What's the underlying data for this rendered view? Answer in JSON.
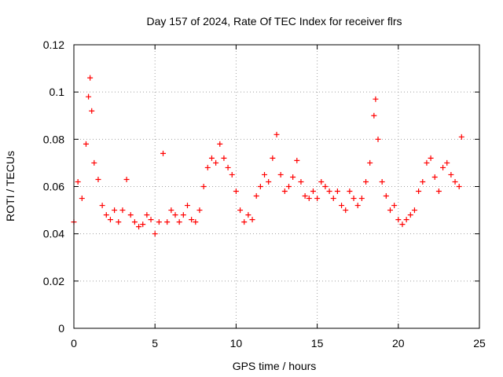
{
  "chart_data": {
    "type": "scatter",
    "title": "Day 157 of 2024, Rate Of TEC Index for receiver flrs",
    "xlabel": "GPS time / hours",
    "ylabel": "ROTI / TECUs",
    "xlim": [
      0,
      25
    ],
    "ylim": [
      0,
      0.12
    ],
    "x_ticks": [
      0,
      5,
      10,
      15,
      20,
      25
    ],
    "x_tick_labels": [
      "0",
      "5",
      "10",
      "15",
      "20",
      "25"
    ],
    "y_ticks": [
      0,
      0.02,
      0.04,
      0.06,
      0.08,
      0.1,
      0.12
    ],
    "y_tick_labels": [
      "0",
      "0.02",
      "0.04",
      "0.06",
      "0.08",
      "0.1",
      "0.12"
    ],
    "grid": true,
    "grid_style": "dotted",
    "marker": "+",
    "color": "#ff0000",
    "series": [
      {
        "x": [
          0.0,
          0.25,
          0.5,
          0.75,
          0.9,
          1.0,
          1.1,
          1.25,
          1.5,
          1.75,
          2.0,
          2.25,
          2.5,
          2.75,
          3.0,
          3.25,
          3.5,
          3.75,
          4.0,
          4.25,
          4.5,
          4.75,
          5.0,
          5.25,
          5.5,
          5.75,
          6.0,
          6.25,
          6.5,
          6.75,
          7.0,
          7.25,
          7.5,
          7.75,
          8.0,
          8.25,
          8.5,
          8.75,
          9.0,
          9.25,
          9.5,
          9.75,
          10.0,
          10.25,
          10.5,
          10.75,
          11.0,
          11.25,
          11.5,
          11.75,
          12.0,
          12.25,
          12.5,
          12.75,
          13.0,
          13.25,
          13.5,
          13.75,
          14.0,
          14.25,
          14.5,
          14.75,
          15.0,
          15.25,
          15.5,
          15.75,
          16.0,
          16.25,
          16.5,
          16.75,
          17.0,
          17.25,
          17.5,
          17.75,
          18.0,
          18.25,
          18.5,
          18.6,
          18.75,
          19.0,
          19.25,
          19.5,
          19.75,
          20.0,
          20.25,
          20.5,
          20.75,
          21.0,
          21.25,
          21.5,
          21.75,
          22.0,
          22.25,
          22.5,
          22.75,
          23.0,
          23.25,
          23.5,
          23.75,
          23.9
        ],
        "y": [
          0.045,
          0.062,
          0.055,
          0.078,
          0.098,
          0.106,
          0.092,
          0.07,
          0.063,
          0.052,
          0.048,
          0.046,
          0.05,
          0.045,
          0.05,
          0.063,
          0.048,
          0.045,
          0.043,
          0.044,
          0.048,
          0.046,
          0.04,
          0.045,
          0.074,
          0.045,
          0.05,
          0.048,
          0.045,
          0.048,
          0.052,
          0.046,
          0.045,
          0.05,
          0.06,
          0.068,
          0.072,
          0.07,
          0.078,
          0.072,
          0.068,
          0.065,
          0.058,
          0.05,
          0.045,
          0.048,
          0.046,
          0.056,
          0.06,
          0.065,
          0.062,
          0.072,
          0.082,
          0.065,
          0.058,
          0.06,
          0.064,
          0.071,
          0.062,
          0.056,
          0.055,
          0.058,
          0.055,
          0.062,
          0.06,
          0.058,
          0.055,
          0.058,
          0.052,
          0.05,
          0.058,
          0.055,
          0.052,
          0.055,
          0.062,
          0.07,
          0.09,
          0.097,
          0.08,
          0.062,
          0.056,
          0.05,
          0.052,
          0.046,
          0.044,
          0.046,
          0.048,
          0.05,
          0.058,
          0.062,
          0.07,
          0.072,
          0.064,
          0.058,
          0.068,
          0.07,
          0.065,
          0.062,
          0.06,
          0.081
        ]
      }
    ]
  }
}
